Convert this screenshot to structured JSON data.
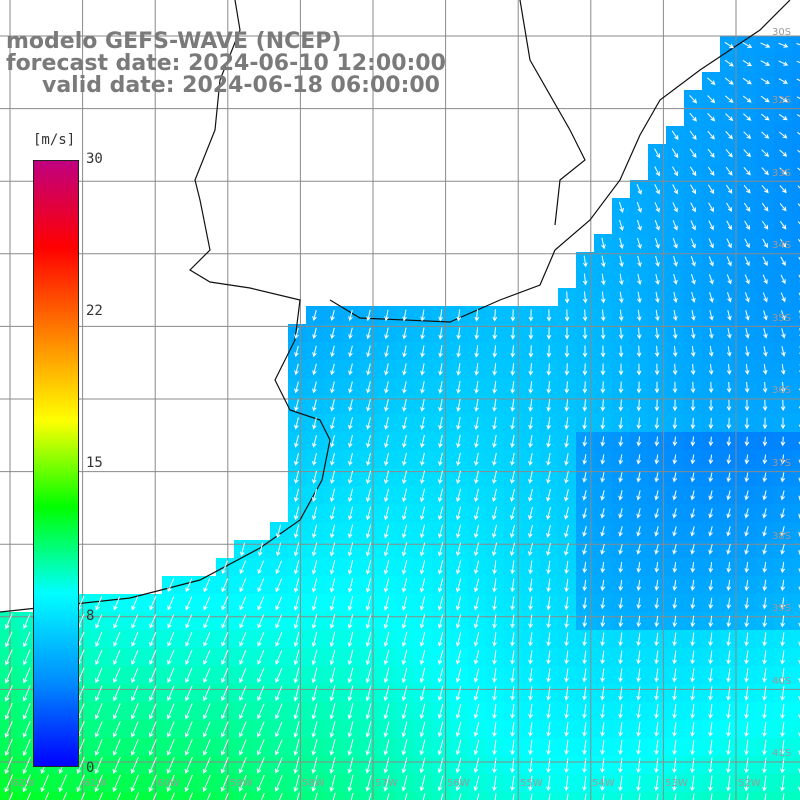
{
  "header": {
    "line1": "modelo GEFS-WAVE (NCEP)",
    "line2": "forecast date: 2024-06-10 12:00:00",
    "line3": "valid date: 2024-06-18 06:00:00"
  },
  "colorbar": {
    "unit": "[m/s]",
    "ticks": [
      "30",
      "22",
      "15",
      "8",
      "0"
    ],
    "tick_values": [
      30,
      22,
      15,
      8,
      0
    ],
    "range": [
      0,
      30
    ],
    "colors": [
      "#0000ff",
      "#0090ff",
      "#00ffff",
      "#00ff00",
      "#ffff00",
      "#ff8000",
      "#ff0000",
      "#c00080"
    ]
  },
  "map_labels": {
    "lat_labels": [
      "30S",
      "32S",
      "33S",
      "34S",
      "35S",
      "36S",
      "37S",
      "38S",
      "39S",
      "40S",
      "41S"
    ],
    "lon_labels": [
      "62W",
      "61W",
      "60W",
      "59W",
      "58W",
      "57W",
      "56W",
      "55W",
      "54W",
      "53W",
      "52W"
    ]
  },
  "chart_data": {
    "type": "heatmap",
    "variable": "wind speed (m/s) with direction arrows",
    "field_summary": [
      {
        "region": "south-west (coast of Buenos Aires province)",
        "speed_ms": 11,
        "direction": "towards south-south-west"
      },
      {
        "region": "central shelf",
        "speed_ms": 7,
        "direction": "towards south"
      },
      {
        "region": "north-east (off Uruguay/Brazil)",
        "speed_ms": 5,
        "direction": "towards west-south-west"
      },
      {
        "region": "south-east (open ocean)",
        "speed_ms": 7.5,
        "direction": "towards south-south-east"
      }
    ],
    "color_range": [
      0,
      30
    ]
  }
}
